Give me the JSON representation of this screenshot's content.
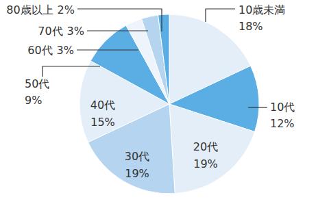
{
  "chart_data": {
    "type": "pie",
    "categories": [
      "10歳未満",
      "10代",
      "20代",
      "30代",
      "40代",
      "50代",
      "60代",
      "70代",
      "80歳以上"
    ],
    "values": [
      18,
      12,
      19,
      19,
      15,
      9,
      3,
      3,
      2
    ],
    "value_labels": [
      "18%",
      "12%",
      "19%",
      "19%",
      "15%",
      "9%",
      "3%",
      "3%",
      "2%"
    ],
    "colors": [
      "#e4eef9",
      "#5aaee4",
      "#e4eef9",
      "#b4d4f0",
      "#e4eef9",
      "#5aaee4",
      "#eef4fb",
      "#b4d4f0",
      "#5aaee4"
    ],
    "data_labels": true
  }
}
